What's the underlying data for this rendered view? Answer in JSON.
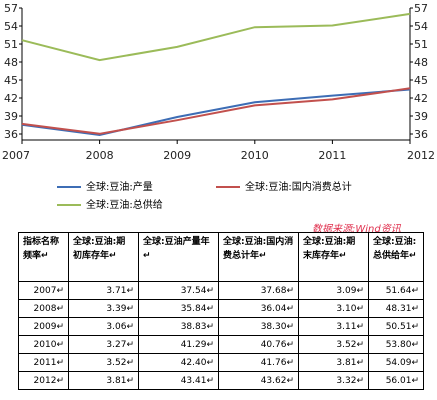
{
  "chart_data": {
    "type": "line",
    "x": [
      "2007",
      "2008",
      "2009",
      "2010",
      "2011",
      "2012"
    ],
    "ylim": [
      35,
      57
    ],
    "yticks": [
      "36",
      "39",
      "42",
      "45",
      "48",
      "51",
      "54",
      "57"
    ],
    "grid": false,
    "series": [
      {
        "name": "全球:豆油:产量",
        "color": "#3d6db5",
        "values": [
          37.54,
          35.84,
          38.83,
          41.29,
          42.4,
          43.41
        ]
      },
      {
        "name": "全球:豆油:国内消费总计",
        "color": "#c2504d",
        "values": [
          37.68,
          36.04,
          38.3,
          40.76,
          41.76,
          43.62
        ]
      },
      {
        "name": "全球:豆油:总供给",
        "color": "#9bbb59",
        "values": [
          51.64,
          48.31,
          50.51,
          53.8,
          54.09,
          56.01
        ]
      }
    ]
  },
  "source_label": "数据来源:Wind资讯",
  "table": {
    "headers": [
      "指标名称频率↵",
      "全球:豆油:期初库存年↵",
      "全球:豆油产量年↵",
      "全球:豆油:国内消费总计年↵",
      "全球:豆油:期末库存年↵",
      "全球:豆油:总供给年↵"
    ],
    "rows": [
      [
        "2007↵",
        "3.71↵",
        "37.54↵",
        "37.68↵",
        "3.09↵",
        "51.64↵"
      ],
      [
        "2008↵",
        "3.39↵",
        "35.84↵",
        "36.04↵",
        "3.10↵",
        "48.31↵"
      ],
      [
        "2009↵",
        "3.06↵",
        "38.83↵",
        "38.30↵",
        "3.11↵",
        "50.51↵"
      ],
      [
        "2010↵",
        "3.27↵",
        "41.29↵",
        "40.76↵",
        "3.52↵",
        "53.80↵"
      ],
      [
        "2011↵",
        "3.52↵",
        "42.40↵",
        "41.76↵",
        "3.81↵",
        "54.09↵"
      ],
      [
        "2012↵",
        "3.81↵",
        "43.41↵",
        "43.62↵",
        "3.32↵",
        "56.01↵"
      ]
    ]
  }
}
